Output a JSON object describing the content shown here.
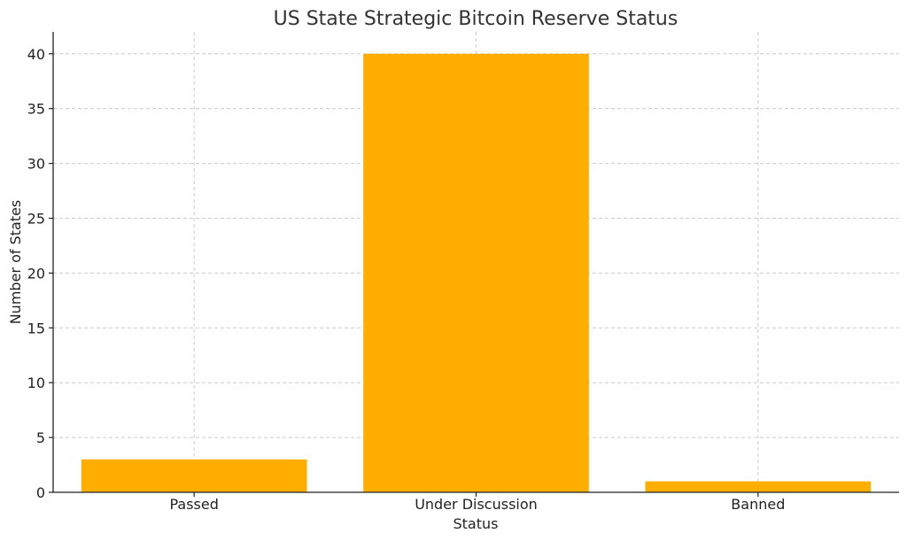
{
  "chart_data": {
    "type": "bar",
    "title": "US State Strategic Bitcoin Reserve Status",
    "xlabel": "Status",
    "ylabel": "Number of States",
    "categories": [
      "Passed",
      "Under Discussion",
      "Banned"
    ],
    "values": [
      3,
      40,
      1
    ],
    "ylim": [
      0,
      42
    ],
    "yticks": [
      0,
      5,
      10,
      15,
      20,
      25,
      30,
      35,
      40
    ],
    "grid": true,
    "bar_color": "#FFAE00"
  }
}
